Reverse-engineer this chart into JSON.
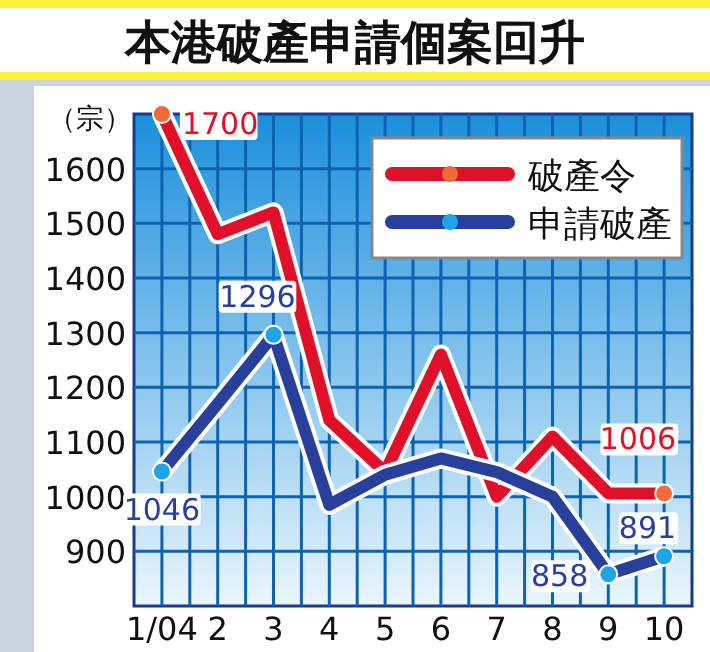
{
  "chart_data": {
    "type": "line",
    "title": "本港破產申請個案回升",
    "ylabel": "（宗）",
    "categories": [
      "1/04",
      "2",
      "3",
      "4",
      "5",
      "6",
      "7",
      "8",
      "9",
      "10"
    ],
    "series": [
      {
        "name": "破產令",
        "color": "#e0102a",
        "values": [
          1700,
          1480,
          1520,
          1140,
          1045,
          1260,
          1000,
          1110,
          1006,
          1006
        ],
        "value_labels": [
          "1700",
          null,
          null,
          null,
          null,
          null,
          null,
          null,
          null,
          "1006"
        ]
      },
      {
        "name": "申請破產",
        "color": "#28409a",
        "values": [
          1046,
          1170,
          1296,
          985,
          1040,
          1070,
          1045,
          1000,
          858,
          891
        ],
        "value_labels": [
          "1046",
          null,
          "1296",
          null,
          null,
          null,
          null,
          null,
          "858",
          "891"
        ]
      }
    ],
    "ylim": [
      800,
      1700
    ],
    "yticks": [
      900,
      1000,
      1100,
      1200,
      1300,
      1400,
      1500,
      1600
    ],
    "grid": true,
    "legend": "top right"
  }
}
